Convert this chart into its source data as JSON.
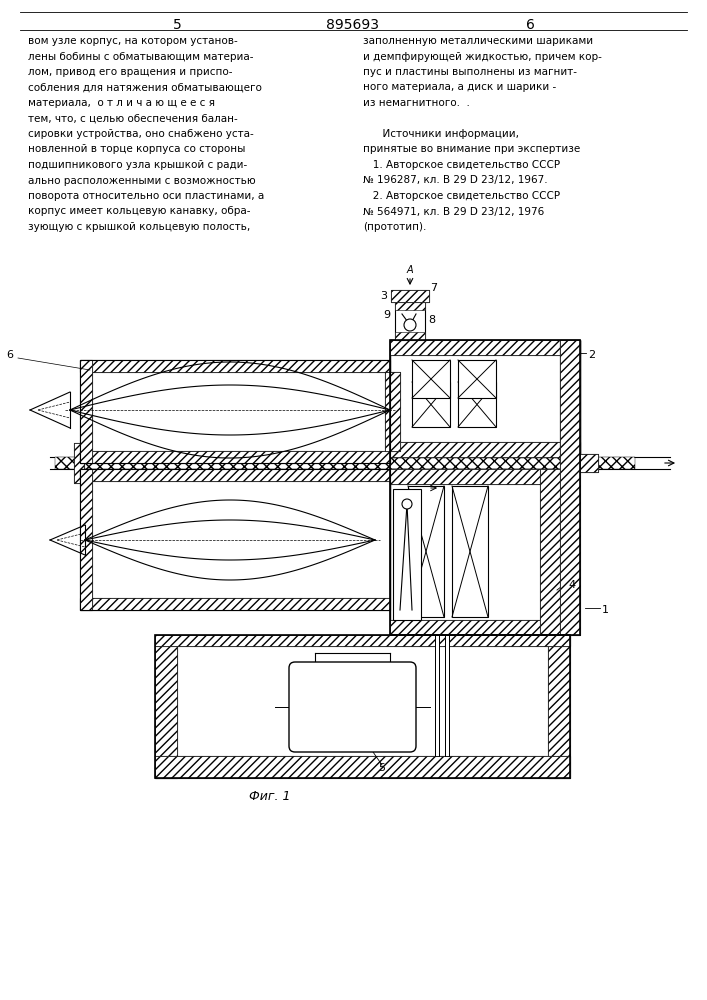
{
  "page_color": "#ffffff",
  "header": {
    "left_num": "5",
    "center_num": "895693",
    "right_num": "6"
  },
  "left_text": [
    "вом узле корпус, на котором установ-",
    "лены бобины с обматывающим материа-",
    "лом, привод его вращения и приспо-",
    "собления для натяжения обматывающего",
    "материала,  о т л и ч а ю щ е е с я",
    "тем, что, с целью обеспечения балан-",
    "сировки устройства, оно снабжено уста-",
    "новленной в торце корпуса со стороны",
    "подшипникового узла крышкой с ради-",
    "ально расположенными с возможностью",
    "поворота относительно оси пластинами, а",
    "корпус имеет кольцевую канавку, обра-",
    "зующую с крышкой кольцевую полость,"
  ],
  "right_text": [
    "заполненную металлическими шариками",
    "и демпфирующей жидкостью, причем кор-",
    "пус и пластины выполнены из магнит-",
    "ного материала, а диск и шарики -",
    "из немагнитного.  .",
    "",
    "      Источники информации,",
    "принятые во внимание при экспертизе",
    "   1. Авторское свидетельство СССР",
    "№ 196287, кл. В 29 D 23/12, 1967.",
    "   2. Авторское свидетельство СССР",
    "№ 564971, кл. В 29 D 23/12, 1976",
    "(прототип)."
  ],
  "caption": "Фиг. 1",
  "fig_color": "#000000"
}
